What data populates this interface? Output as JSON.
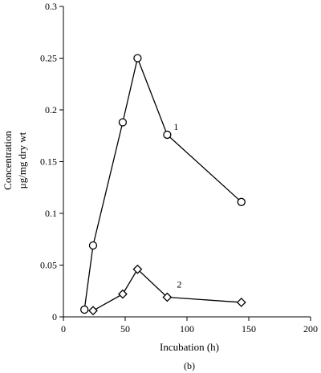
{
  "chart_data": {
    "type": "line",
    "panel_label": "(b)",
    "xlabel": "Incubation  (h)",
    "ylabel_line1": "Concentration",
    "ylabel_line2": "μg/mg dry wt",
    "xlim": [
      0,
      200
    ],
    "ylim": [
      0,
      0.3
    ],
    "x_ticks": [
      "0",
      "50",
      "100",
      "150",
      "200"
    ],
    "y_ticks": [
      "0",
      "0.05",
      "0.1",
      "0.15",
      "0.2",
      "0.25",
      "0.3"
    ],
    "grid": false,
    "series": [
      {
        "name": "1",
        "marker": "circle",
        "x": [
          17,
          24,
          48,
          60,
          84,
          144
        ],
        "y": [
          0.007,
          0.069,
          0.188,
          0.25,
          0.176,
          0.111
        ]
      },
      {
        "name": "2",
        "marker": "diamond",
        "x": [
          24,
          48,
          60,
          84,
          144
        ],
        "y": [
          0.006,
          0.022,
          0.046,
          0.019,
          0.014
        ]
      }
    ]
  }
}
